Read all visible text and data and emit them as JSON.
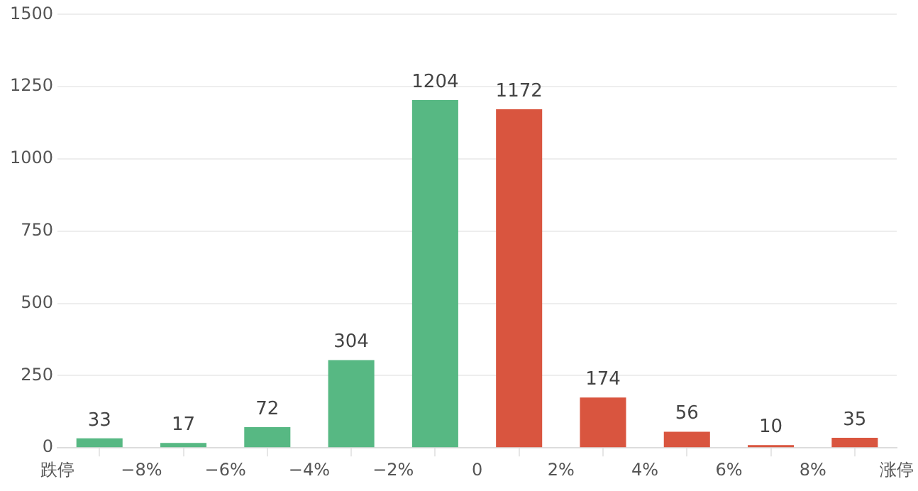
{
  "chart_data": {
    "type": "bar",
    "x": [
      -9,
      -7,
      -5,
      -3,
      -1,
      1,
      3,
      5,
      7,
      9
    ],
    "values": [
      33,
      17,
      72,
      304,
      1204,
      1172,
      174,
      56,
      10,
      35
    ],
    "colors": [
      "#57b883",
      "#57b883",
      "#57b883",
      "#57b883",
      "#57b883",
      "#d9553f",
      "#d9553f",
      "#d9553f",
      "#d9553f",
      "#d9553f"
    ],
    "xlim": [
      -10,
      10
    ],
    "xticks": [
      {
        "value": -10,
        "label": "跌停"
      },
      {
        "value": -8,
        "label": "−8%"
      },
      {
        "value": -6,
        "label": "−6%"
      },
      {
        "value": -4,
        "label": "−4%"
      },
      {
        "value": -2,
        "label": "−2%"
      },
      0,
      {
        "value": 2,
        "label": "2%"
      },
      {
        "value": 4,
        "label": "4%"
      },
      {
        "value": 6,
        "label": "6%"
      },
      {
        "value": 8,
        "label": "8%"
      },
      {
        "value": 10,
        "label": "涨停"
      }
    ],
    "ylim": [
      0,
      1500
    ],
    "yticks": [
      0,
      250,
      500,
      750,
      1000,
      1250,
      1500
    ],
    "grid": "y",
    "data_labels": true,
    "legend": false
  }
}
